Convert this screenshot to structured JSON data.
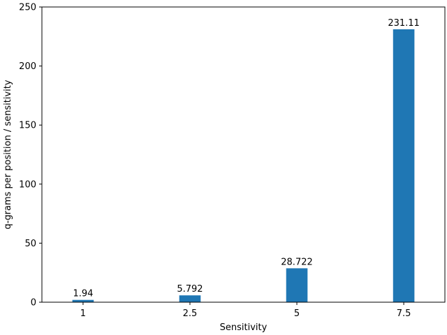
{
  "chart_data": {
    "type": "bar",
    "title": "",
    "xlabel": "Sensitivity",
    "ylabel": "q-grams per position / sensitivity",
    "categories": [
      "1",
      "2.5",
      "5",
      "7.5"
    ],
    "values": [
      1.94,
      5.792,
      28.722,
      231.11
    ],
    "value_labels": [
      "1.94",
      "5.792",
      "28.722",
      "231.11"
    ],
    "ylim": [
      0,
      250
    ],
    "yticks": [
      0,
      50,
      100,
      150,
      200,
      250
    ],
    "ytick_labels": [
      "0",
      "50",
      "100",
      "150",
      "200",
      "250"
    ],
    "grid": false,
    "legend": "none",
    "bar_color": "#1f77b4"
  }
}
